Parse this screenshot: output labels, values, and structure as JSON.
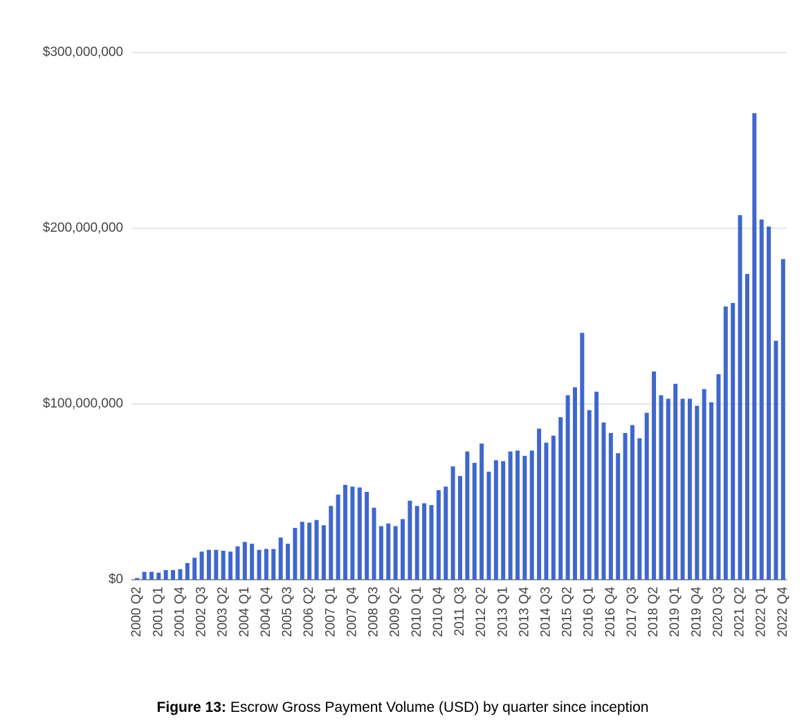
{
  "chart_data": {
    "type": "bar",
    "caption": {
      "label": "Figure 13:",
      "text": "Escrow Gross Payment Volume (USD) by quarter since inception"
    },
    "categories": [
      "2000 Q2",
      null,
      null,
      "2001 Q1",
      null,
      null,
      "2001 Q4",
      null,
      null,
      "2002 Q3",
      null,
      null,
      "2003 Q2",
      null,
      null,
      "2004 Q1",
      null,
      null,
      "2004 Q4",
      null,
      null,
      "2005 Q3",
      null,
      null,
      "2006 Q2",
      null,
      null,
      "2007 Q1",
      null,
      null,
      "2007 Q4",
      null,
      null,
      "2008 Q3",
      null,
      null,
      "2009 Q2",
      null,
      null,
      "2010 Q1",
      null,
      null,
      "2010 Q4",
      null,
      null,
      "2011 Q3",
      null,
      null,
      "2012 Q2",
      null,
      null,
      "2013 Q1",
      null,
      null,
      "2013 Q4",
      null,
      null,
      "2014 Q3",
      null,
      null,
      "2015 Q2",
      null,
      null,
      "2016 Q1",
      null,
      null,
      "2016 Q4",
      null,
      null,
      "2017 Q3",
      null,
      null,
      "2018 Q2",
      null,
      null,
      "2019 Q1",
      null,
      null,
      "2019 Q4",
      null,
      null,
      "2020 Q3",
      null,
      null,
      "2021 Q2",
      null,
      null,
      "2022 Q1",
      null,
      null,
      "2022 Q4"
    ],
    "values": [
      1000000,
      4500000,
      4500000,
      4000000,
      5500000,
      5500000,
      6000000,
      9500000,
      12500000,
      16000000,
      17000000,
      17000000,
      16500000,
      16000000,
      19000000,
      21500000,
      20500000,
      17000000,
      17500000,
      17500000,
      24000000,
      20500000,
      29500000,
      33000000,
      32500000,
      34000000,
      31000000,
      42000000,
      48500000,
      54000000,
      53000000,
      52500000,
      50000000,
      41000000,
      30500000,
      32000000,
      30500000,
      34500000,
      45000000,
      42000000,
      43500000,
      42500000,
      51000000,
      53000000,
      64500000,
      59000000,
      73000000,
      66500000,
      77500000,
      61500000,
      68000000,
      67500000,
      73000000,
      73500000,
      70500000,
      73500000,
      86000000,
      78000000,
      82000000,
      92500000,
      105000000,
      109500000,
      140500000,
      96500000,
      107000000,
      89500000,
      83500000,
      72000000,
      83500000,
      88000000,
      80500000,
      95000000,
      118500000,
      105000000,
      103000000,
      111500000,
      103000000,
      103000000,
      99000000,
      108500000,
      101000000,
      117000000,
      155500000,
      157500000,
      207500000,
      174000000,
      265500000,
      205000000,
      201000000,
      136000000,
      182500000
    ],
    "color": "#3f67cc",
    "ylim": [
      0,
      300000000
    ],
    "yticks": [
      {
        "value": 0,
        "label": "$0"
      },
      {
        "value": 100000000,
        "label": "$100,000,000"
      },
      {
        "value": 200000000,
        "label": "$200,000,000"
      },
      {
        "value": 300000000,
        "label": "$300,000,000"
      }
    ],
    "grid": true
  }
}
